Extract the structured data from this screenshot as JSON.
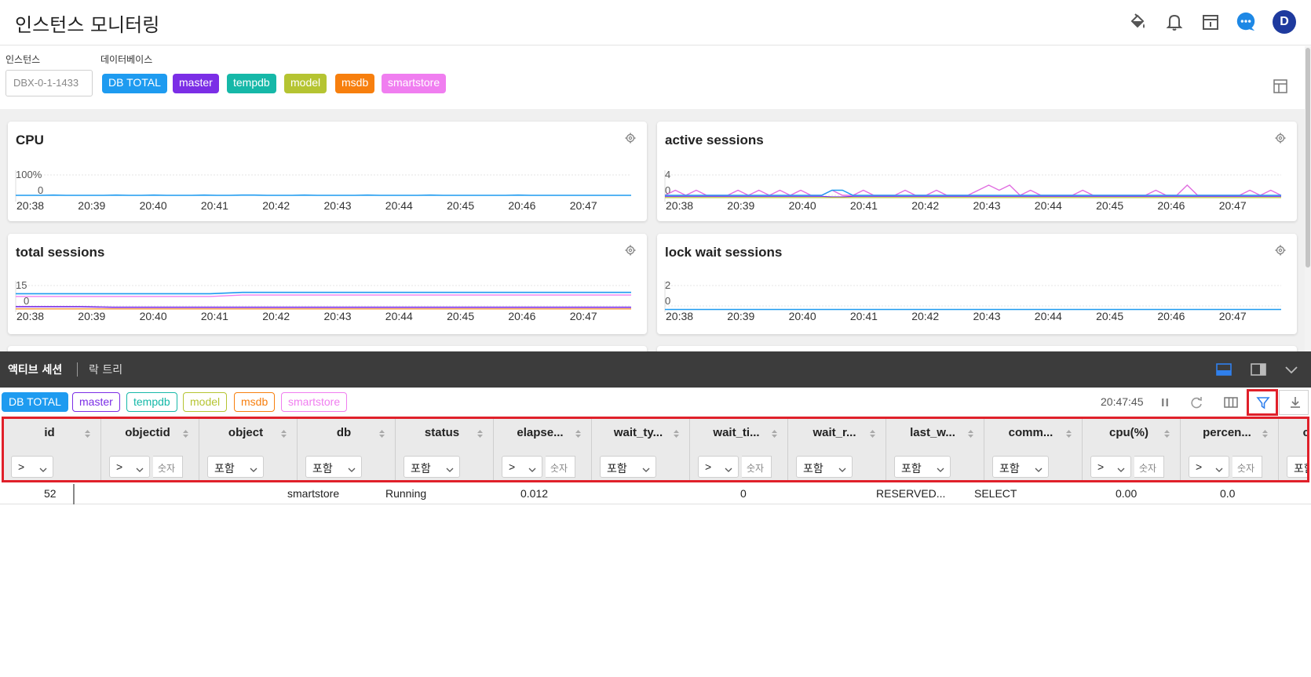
{
  "header": {
    "title": "인스턴스 모니터링",
    "avatar_letter": "D"
  },
  "filter": {
    "instance_label": "인스턴스",
    "database_label": "데이터베이스",
    "instance_value": "DBX-0-1-1433",
    "databases": [
      {
        "label": "DB TOTAL",
        "color": "#1e9bf0"
      },
      {
        "label": "master",
        "color": "#7b2ee6"
      },
      {
        "label": "tempdb",
        "color": "#16b8a8"
      },
      {
        "label": "model",
        "color": "#b5c432"
      },
      {
        "label": "msdb",
        "color": "#f77f0e"
      },
      {
        "label": "smartstore",
        "color": "#f07ef0"
      }
    ]
  },
  "panels": [
    {
      "title": "CPU",
      "y_top": "100%",
      "y_bottom": "0"
    },
    {
      "title": "active sessions",
      "y_top": "4",
      "y_bottom": "0"
    },
    {
      "title": "total sessions",
      "y_top": "15",
      "y_bottom": "0"
    },
    {
      "title": "lock wait sessions",
      "y_top": "2",
      "y_bottom": "0"
    }
  ],
  "time_ticks": [
    "20:38",
    "20:39",
    "20:40",
    "20:41",
    "20:42",
    "20:43",
    "20:44",
    "20:45",
    "20:46",
    "20:47"
  ],
  "bottom": {
    "tabs": [
      "액티브 세션",
      "락 트리"
    ],
    "time": "20:47:45",
    "db_chips": [
      {
        "label": "DB TOTAL",
        "color": "#1e9bf0",
        "filled": true
      },
      {
        "label": "master",
        "color": "#7b2ee6",
        "filled": false
      },
      {
        "label": "tempdb",
        "color": "#16b8a8",
        "filled": false
      },
      {
        "label": "model",
        "color": "#b5c432",
        "filled": false
      },
      {
        "label": "msdb",
        "color": "#f77f0e",
        "filled": false
      },
      {
        "label": "smartstore",
        "color": "#f07ef0",
        "filled": false
      }
    ]
  },
  "grid": {
    "columns": [
      {
        "label": "id",
        "op": ">",
        "num": false
      },
      {
        "label": "objectid",
        "op": ">",
        "num": true
      },
      {
        "label": "object",
        "op": "포함",
        "num": false
      },
      {
        "label": "db",
        "op": "포함",
        "num": false
      },
      {
        "label": "status",
        "op": "포함",
        "num": false
      },
      {
        "label": "elapse...",
        "op": ">",
        "num": true
      },
      {
        "label": "wait_ty...",
        "op": "포함",
        "num": false
      },
      {
        "label": "wait_ti...",
        "op": ">",
        "num": true
      },
      {
        "label": "wait_r...",
        "op": "포함",
        "num": false
      },
      {
        "label": "last_w...",
        "op": "포함",
        "num": false
      },
      {
        "label": "comm...",
        "op": "포함",
        "num": false
      },
      {
        "label": "cpu(%)",
        "op": ">",
        "num": true
      },
      {
        "label": "percen...",
        "op": ">",
        "num": true
      },
      {
        "label": "compl...",
        "op": "포함",
        "num": false
      }
    ],
    "num_placeholder": "숫자",
    "row": {
      "id": "52",
      "db": "smartstore",
      "status": "Running",
      "elapsed": "0.012",
      "wait_time": "0",
      "last_wait": "RESERVED...",
      "command": "SELECT",
      "cpu": "0.00",
      "percent": "0.0"
    }
  }
}
